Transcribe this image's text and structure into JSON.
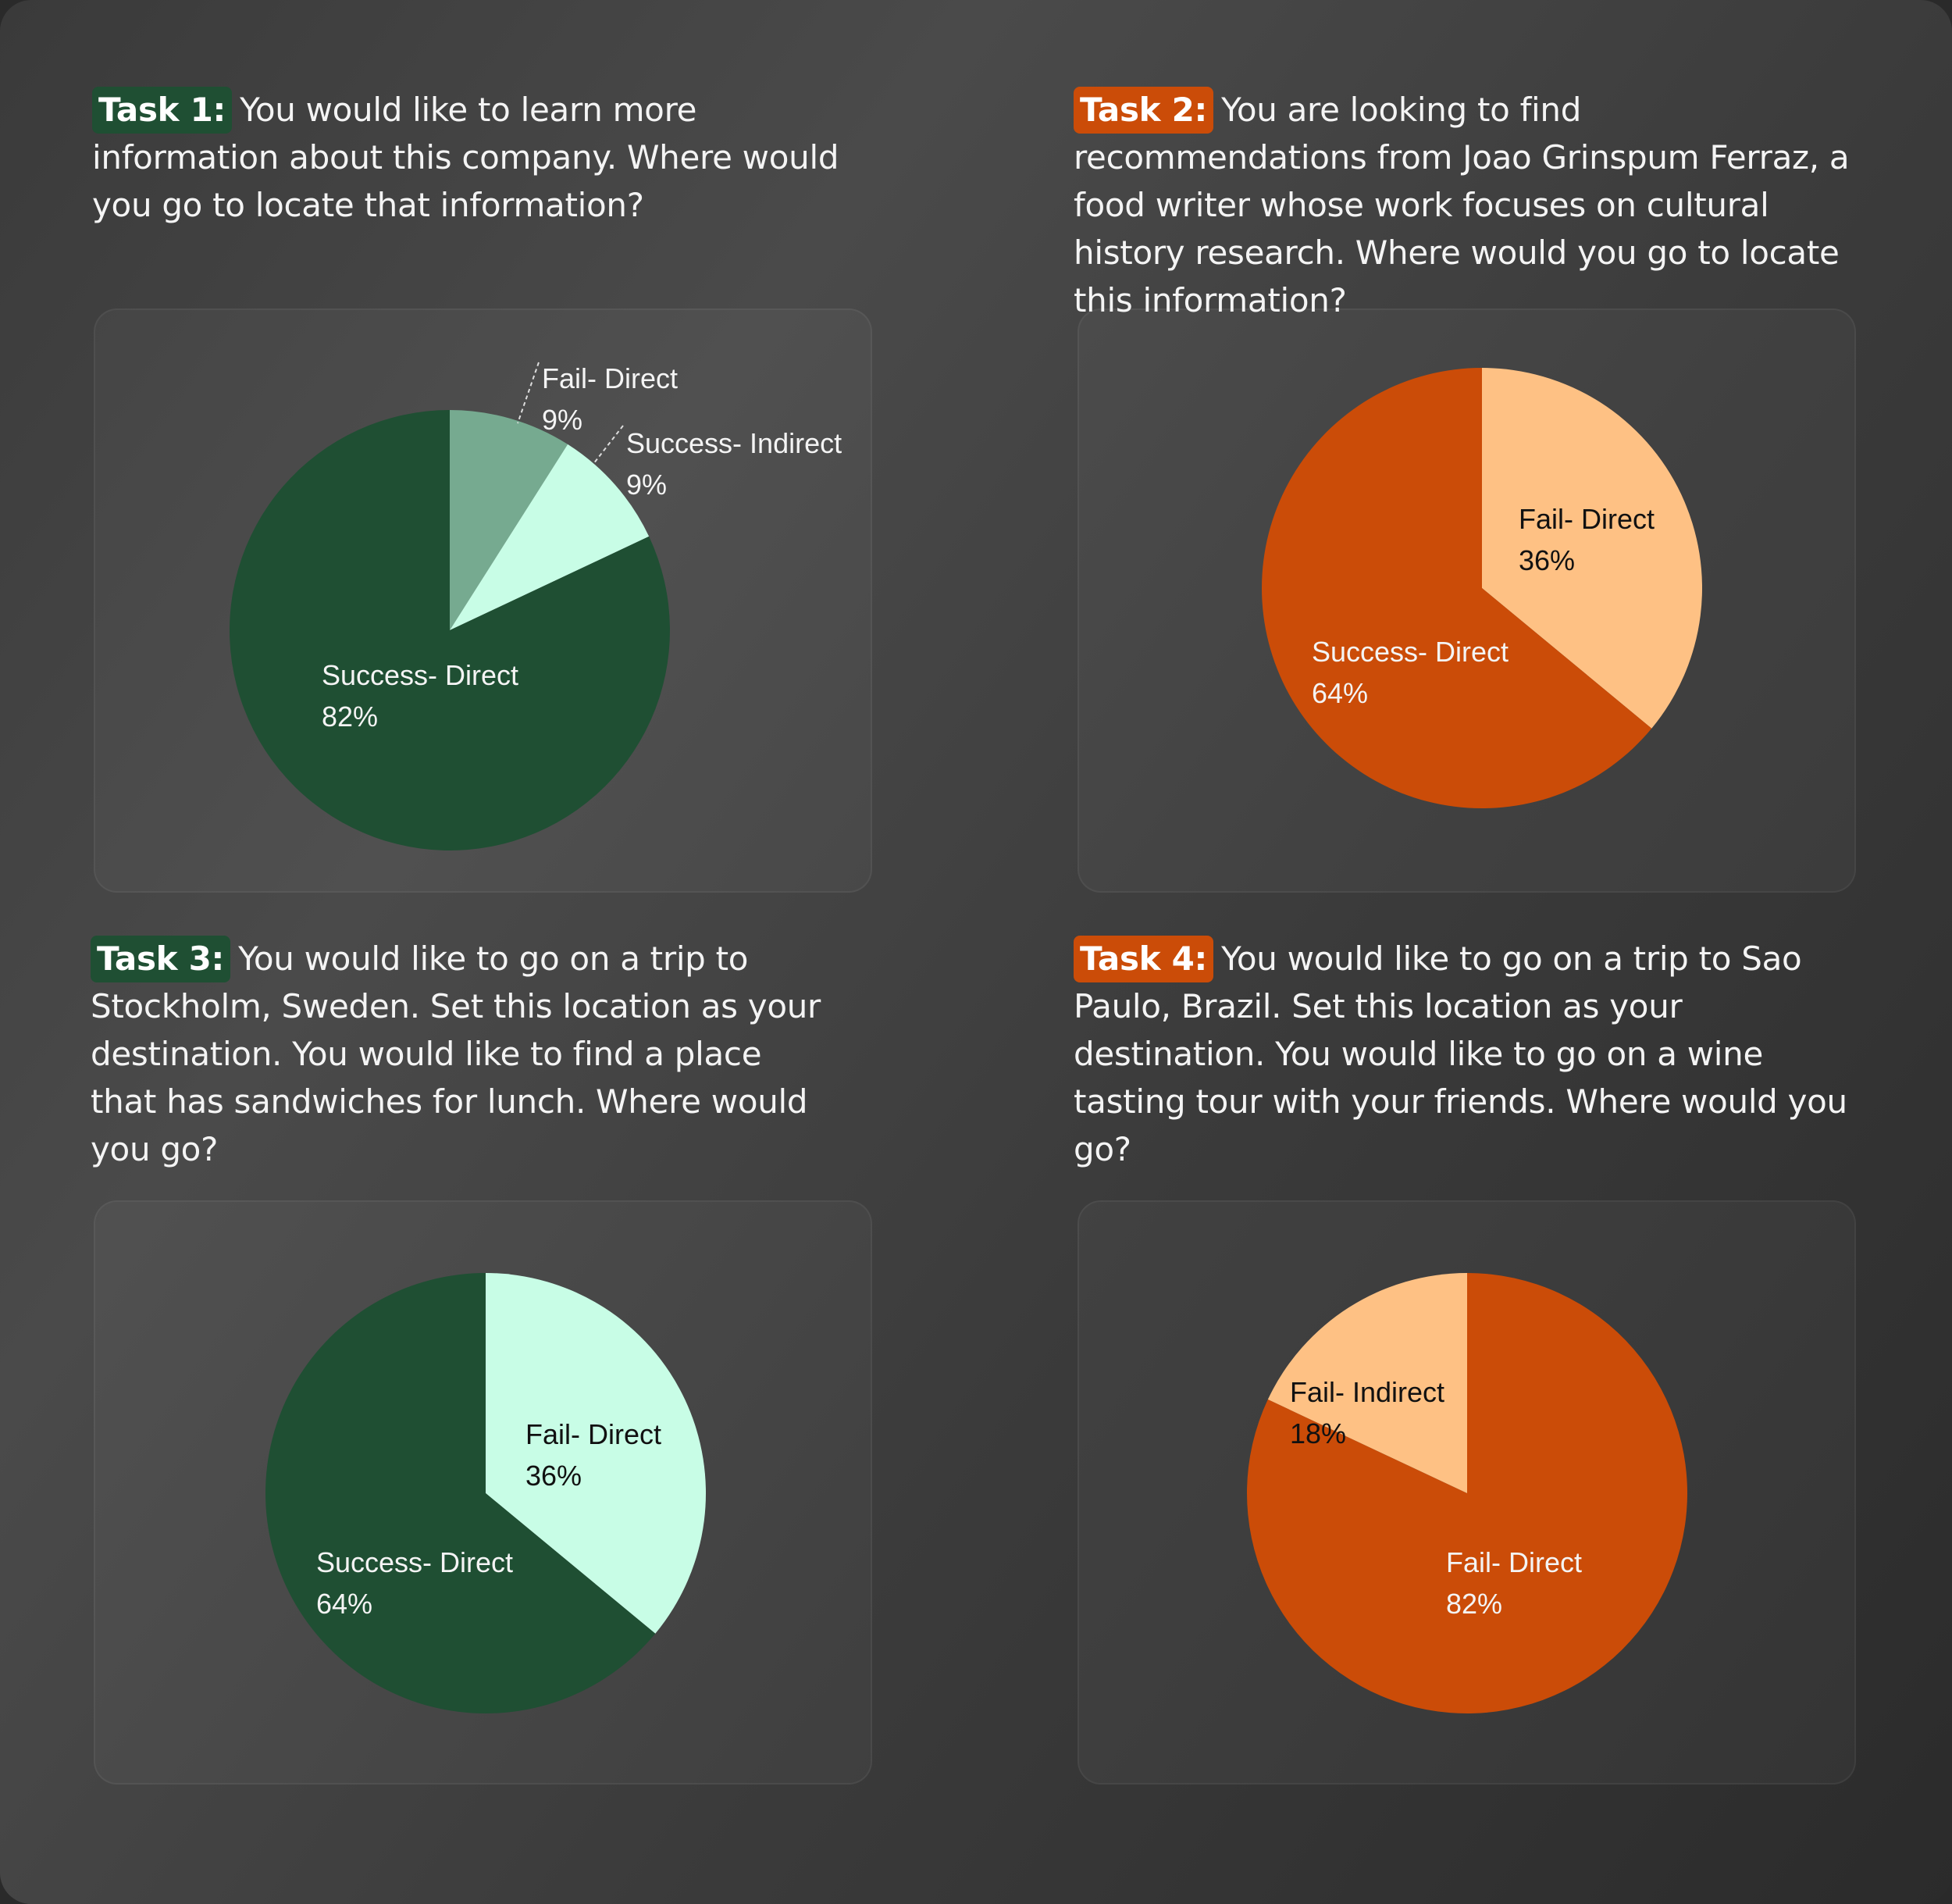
{
  "colors": {
    "green_dark": "#1f4f33",
    "green_mid": "#76aa90",
    "green_light": "#c8fde6",
    "orange_dark": "#cb4c08",
    "orange_light": "#fec184"
  },
  "tasks": [
    {
      "label": "Task 1:",
      "text": "You would like to learn more information about this company. Where would you go to locate that information?"
    },
    {
      "label": "Task 2:",
      "text": "You are looking to find recommendations from Joao Grinspum Ferraz, a food writer whose work focuses on cultural history research. Where would you go to locate this information?"
    },
    {
      "label": "Task 3:",
      "text": "You would like to go on a trip to Stockholm, Sweden. Set this location as your destination. You would like to find a place that has sandwiches for lunch. Where would you go?"
    },
    {
      "label": "Task 4:",
      "text": "You would like to go on a trip to Sao Paulo, Brazil. Set this location as your destination. You would like to go on a wine tasting tour with your friends. Where would you go?"
    }
  ],
  "chart_data": [
    {
      "type": "pie",
      "title": "",
      "slices": [
        {
          "name": "Fail- Direct",
          "value": 9,
          "label": "9%",
          "color": "#76aa90"
        },
        {
          "name": "Success- Indirect",
          "value": 9,
          "label": "9%",
          "color": "#c8fde6"
        },
        {
          "name": "Success- Direct",
          "value": 82,
          "label": "82%",
          "color": "#1f4f33"
        }
      ]
    },
    {
      "type": "pie",
      "title": "",
      "slices": [
        {
          "name": "Fail- Direct",
          "value": 36,
          "label": "36%",
          "color": "#fec184"
        },
        {
          "name": "Success- Direct",
          "value": 64,
          "label": "64%",
          "color": "#cb4c08"
        }
      ]
    },
    {
      "type": "pie",
      "title": "",
      "slices": [
        {
          "name": "Fail- Direct",
          "value": 36,
          "label": "36%",
          "color": "#c8fde6"
        },
        {
          "name": "Success- Direct",
          "value": 64,
          "label": "64%",
          "color": "#1f4f33"
        }
      ]
    },
    {
      "type": "pie",
      "title": "",
      "slices": [
        {
          "name": "Fail- Direct",
          "value": 82,
          "label": "82%",
          "color": "#cb4c08"
        },
        {
          "name": "Fail- Indirect",
          "value": 18,
          "label": "18%",
          "color": "#fec184"
        }
      ]
    }
  ]
}
